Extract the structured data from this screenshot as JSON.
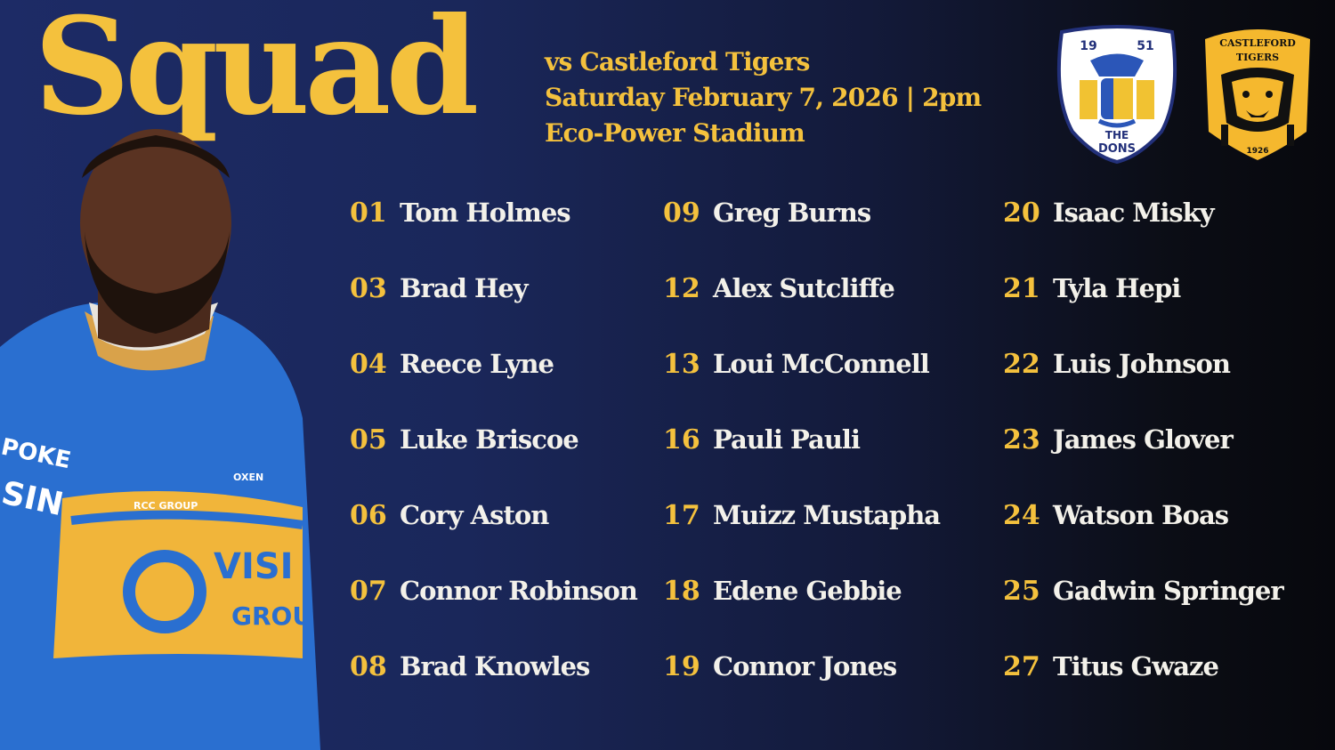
{
  "title": "Squad",
  "fixture": {
    "opponent_line": "vs Castleford Tigers",
    "date_line": "Saturday February 7, 2026 | 2pm",
    "venue_line": "Eco-Power Stadium"
  },
  "logos": {
    "home": {
      "name": "the-dons-crest",
      "lettering": [
        "19",
        "51",
        "THE",
        "DONS"
      ]
    },
    "away": {
      "name": "castleford-tigers-badge",
      "lettering": [
        "CASTLEFORD",
        "TIGERS",
        "1926"
      ]
    }
  },
  "player_photo": {
    "jersey_lettering": [
      "POKE",
      "SIN",
      "RCC GROUP",
      "OXEN",
      "VISI",
      "GROU"
    ]
  },
  "colors": {
    "gold": "#f4c13d",
    "navy": "#1d2b66",
    "dark": "#07080d",
    "jersey_blue": "#2a6fd0"
  },
  "squad": [
    [
      {
        "number": "01",
        "name": "Tom Holmes"
      },
      {
        "number": "03",
        "name": "Brad Hey"
      },
      {
        "number": "04",
        "name": "Reece Lyne"
      },
      {
        "number": "05",
        "name": "Luke Briscoe"
      },
      {
        "number": "06",
        "name": "Cory Aston"
      },
      {
        "number": "07",
        "name": "Connor Robinson"
      },
      {
        "number": "08",
        "name": "Brad Knowles"
      }
    ],
    [
      {
        "number": "09",
        "name": "Greg Burns"
      },
      {
        "number": "12",
        "name": "Alex Sutcliffe"
      },
      {
        "number": "13",
        "name": "Loui McConnell"
      },
      {
        "number": "16",
        "name": "Pauli Pauli"
      },
      {
        "number": "17",
        "name": "Muizz Mustapha"
      },
      {
        "number": "18",
        "name": "Edene Gebbie"
      },
      {
        "number": "19",
        "name": "Connor Jones"
      }
    ],
    [
      {
        "number": "20",
        "name": "Isaac Misky"
      },
      {
        "number": "21",
        "name": "Tyla Hepi"
      },
      {
        "number": "22",
        "name": "Luis Johnson"
      },
      {
        "number": "23",
        "name": "James Glover"
      },
      {
        "number": "24",
        "name": "Watson Boas"
      },
      {
        "number": "25",
        "name": "Gadwin Springer"
      },
      {
        "number": "27",
        "name": "Titus Gwaze"
      }
    ]
  ]
}
